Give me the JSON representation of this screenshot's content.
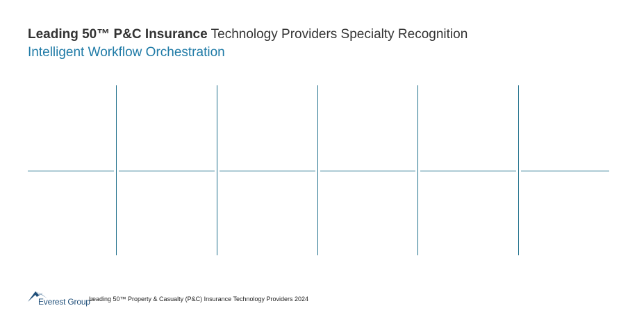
{
  "header": {
    "title_bold": "Leading 50™ P&C Insurance",
    "title_regular": " Technology Providers Specialty Recognition",
    "subtitle": "Intelligent Workflow Orchestration"
  },
  "footer": {
    "logo_text": "Everest Group",
    "logo_reg": "®",
    "report_title": "Leading 50™ Property & Casualty (P&C) Insurance Technology Providers 2024"
  },
  "colors": {
    "title": "#333333",
    "subtitle": "#1e7aa6",
    "grid_lines": "#1f6f8b",
    "logo": "#1f4f7a"
  }
}
